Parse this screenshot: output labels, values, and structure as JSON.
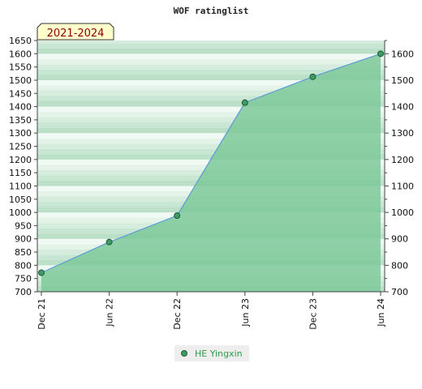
{
  "chart_data": {
    "type": "area",
    "title": "WOF ratinglist",
    "period_label": "2021-2024",
    "categories": [
      "Dec 21",
      "Jun 22",
      "Dec 22",
      "Jun 23",
      "Dec 23",
      "Jun 24"
    ],
    "series": [
      {
        "name": "HE Yingxin",
        "values": [
          772,
          888,
          988,
          1415,
          1513,
          1600
        ]
      }
    ],
    "ylim": [
      700,
      1650
    ],
    "left_ticks": [
      700,
      750,
      800,
      850,
      900,
      950,
      1000,
      1050,
      1100,
      1150,
      1200,
      1250,
      1300,
      1350,
      1400,
      1450,
      1500,
      1550,
      1600,
      1650
    ],
    "right_ticks": [
      700,
      800,
      900,
      1000,
      1100,
      1200,
      1300,
      1400,
      1500,
      1600
    ],
    "legend_position": "bottom",
    "colors": {
      "area": "#7ec99a",
      "line": "#5b9bd5",
      "marker": "#3d9b63",
      "band_dark": "#c5e6d1",
      "band_light": "#eef8f1",
      "label_box": "#ffffcc"
    }
  }
}
